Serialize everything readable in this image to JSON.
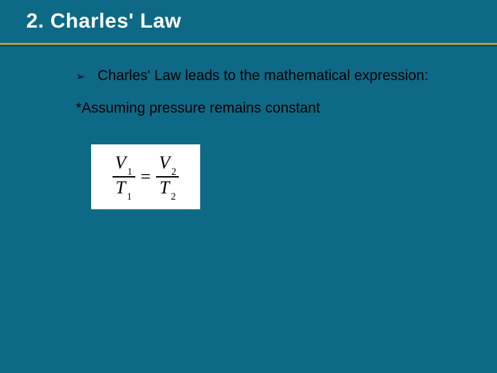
{
  "slide": {
    "background_color": "#0d6986",
    "title": "2. Charles' Law",
    "title_color": "#ffffff",
    "title_fontsize": 30,
    "underline_color": "#b89a4a",
    "bullet_marker": "➢",
    "bullet_text": "Charles' Law leads to the mathematical expression:",
    "note_text": "*Assuming pressure remains constant",
    "body_fontsize": 21,
    "body_color": "#000000",
    "equation": {
      "background_color": "#ffffff",
      "font_family": "Times New Roman",
      "font_style": "italic",
      "fontsize": 26,
      "left_num_var": "V",
      "left_num_sub": "1",
      "left_den_var": "T",
      "left_den_sub": "1",
      "operator": "=",
      "right_num_var": "V",
      "right_num_sub": "2",
      "right_den_var": "T",
      "right_den_sub": "2"
    }
  }
}
